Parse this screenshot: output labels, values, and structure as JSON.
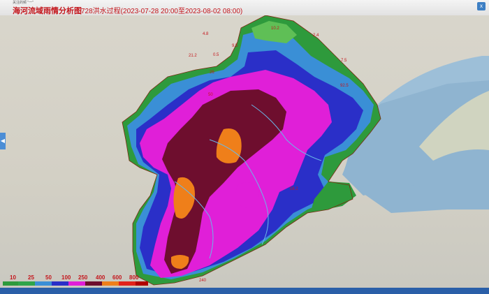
{
  "window": {
    "title": "海河流域雨情分析图",
    "subtitle": "728洪水过程(2023-07-28 20:00至2023-08-02 08:00)",
    "toolbar_text": "关注的频 \"一\"",
    "close_label": "x",
    "side_arrow": "◀"
  },
  "legend": {
    "thresholds": [
      "10",
      "25",
      "50",
      "100",
      "250",
      "400",
      "600",
      "800"
    ],
    "colors": [
      "#2e9a3c",
      "#2fa54a",
      "#3a8fd6",
      "#2a2fc8",
      "#e01fd8",
      "#6e0e2e",
      "#ef7f1a",
      "#e2231a",
      "#b00000"
    ]
  },
  "map_labels": [
    {
      "text": "10.2",
      "color": "#c4161c"
    },
    {
      "text": "4.8",
      "color": "#c4161c"
    },
    {
      "text": "9.5",
      "color": "#c4161c"
    },
    {
      "text": "21.2",
      "color": "#c4161c"
    },
    {
      "text": "0.5",
      "color": "#c4161c"
    },
    {
      "text": "2.4",
      "color": "#c4161c"
    },
    {
      "text": "7.5",
      "color": "#c4161c"
    },
    {
      "text": "26",
      "color": "#c4161c"
    },
    {
      "text": "92.5",
      "color": "#c4161c"
    },
    {
      "text": "50",
      "color": "#c4161c"
    },
    {
      "text": "58.2",
      "color": "#c4161c"
    },
    {
      "text": "240",
      "color": "#c4161c"
    }
  ],
  "taskbar": {
    "item": "  "
  }
}
